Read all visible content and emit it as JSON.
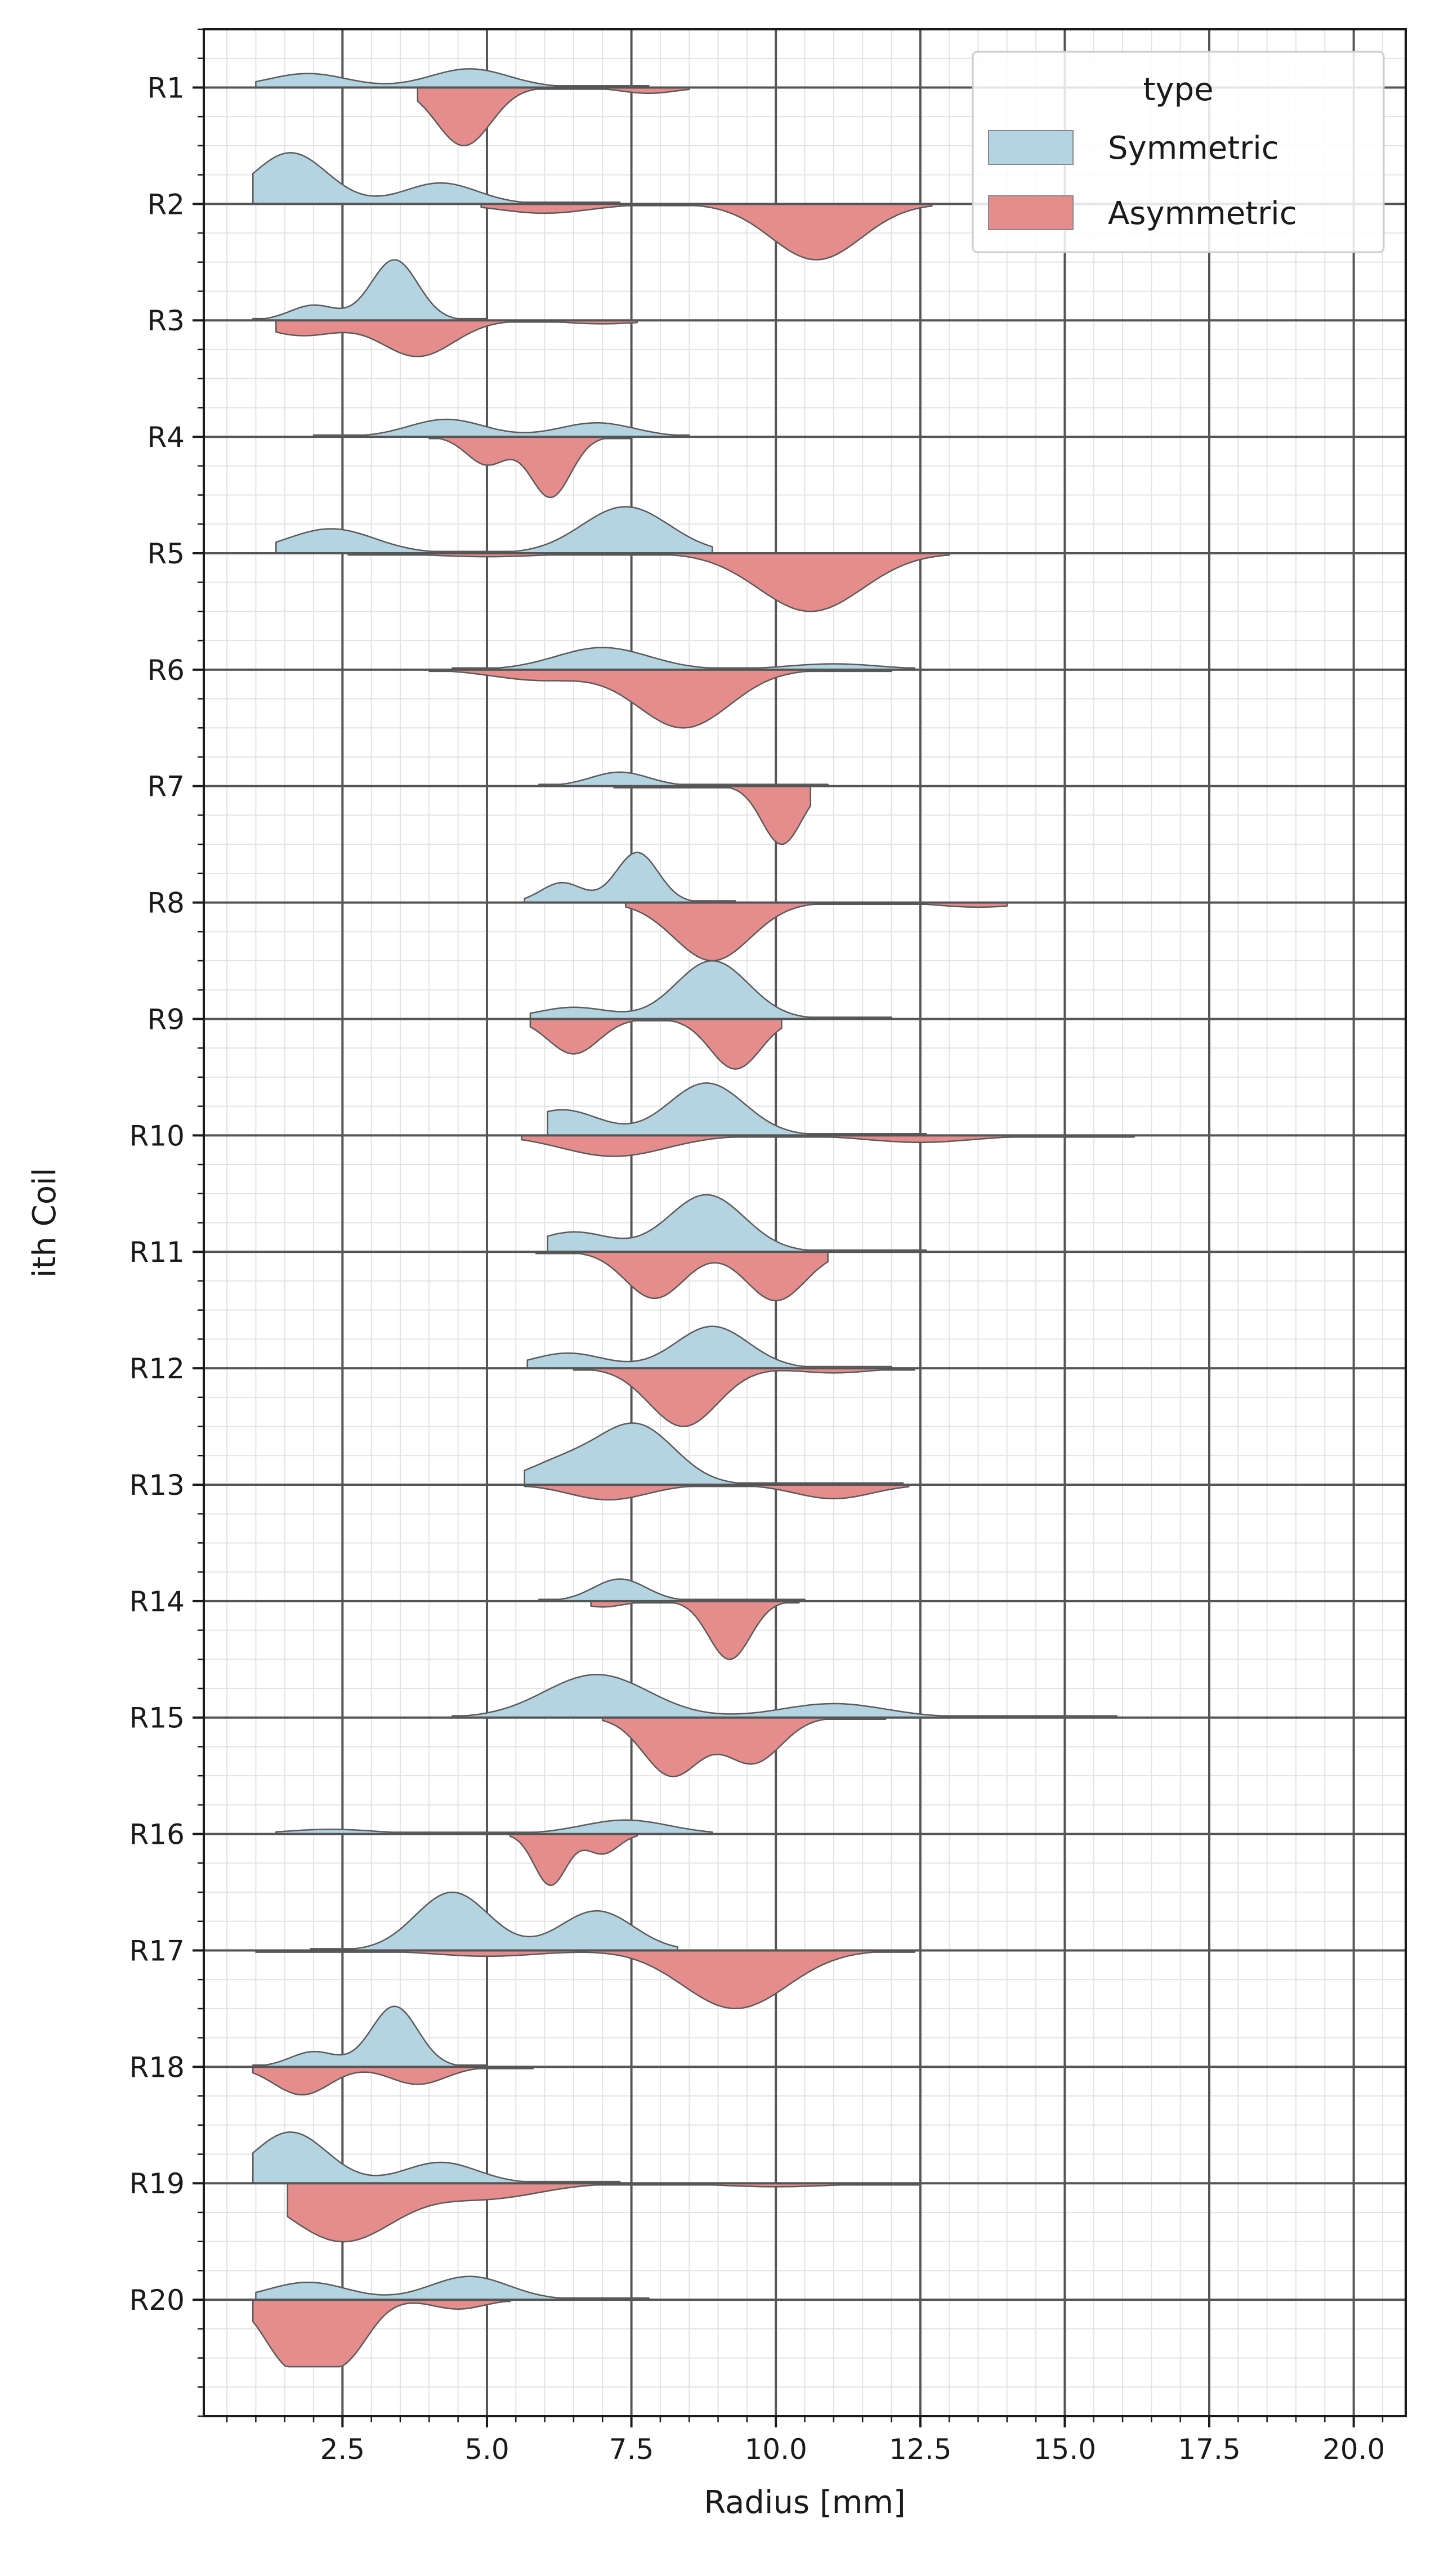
{
  "chart_data": {
    "type": "split-violin",
    "xlabel": "Radius [mm]",
    "ylabel": "ith Coil",
    "xlim": [
      0.1,
      20.9
    ],
    "xticks": [
      2.5,
      5.0,
      7.5,
      10.0,
      12.5,
      15.0,
      17.5,
      20.0
    ],
    "xtick_labels": [
      "2.5",
      "5.0",
      "7.5",
      "10.0",
      "12.5",
      "15.0",
      "17.5",
      "20.0"
    ],
    "categories": [
      "R1",
      "R2",
      "R3",
      "R4",
      "R5",
      "R6",
      "R7",
      "R8",
      "R9",
      "R10",
      "R11",
      "R12",
      "R13",
      "R14",
      "R15",
      "R16",
      "R17",
      "R18",
      "R19",
      "R20"
    ],
    "grid": "major and minor",
    "legend": {
      "title": "type",
      "placement": "top-right",
      "entries": [
        {
          "label": "Symmetric",
          "color": "#b3d4e0"
        },
        {
          "label": "Asymmetric",
          "color": "#e58c8c"
        }
      ]
    },
    "series": [
      {
        "name": "Symmetric",
        "side": "upper",
        "color": "#b3d4e0",
        "violins": [
          {
            "category": "R1",
            "range": [
              1.0,
              7.8
            ],
            "peaks": [
              [
                1.9,
                0.12
              ],
              [
                4.7,
                0.16
              ]
            ]
          },
          {
            "category": "R2",
            "range": [
              0.95,
              7.3
            ],
            "peaks": [
              [
                1.6,
                0.44
              ],
              [
                4.2,
                0.18
              ]
            ]
          },
          {
            "category": "R3",
            "range": [
              0.95,
              5.0
            ],
            "peaks": [
              [
                2.0,
                0.13
              ],
              [
                3.4,
                0.52
              ]
            ]
          },
          {
            "category": "R4",
            "range": [
              2.0,
              8.5
            ],
            "peaks": [
              [
                4.3,
                0.15
              ],
              [
                6.9,
                0.12
              ]
            ]
          },
          {
            "category": "R5",
            "range": [
              1.35,
              8.9
            ],
            "peaks": [
              [
                2.3,
                0.21
              ],
              [
                7.4,
                0.4
              ]
            ]
          },
          {
            "category": "R6",
            "range": [
              4.4,
              12.4
            ],
            "peaks": [
              [
                7.0,
                0.19
              ],
              [
                11.0,
                0.05
              ]
            ]
          },
          {
            "category": "R7",
            "range": [
              5.9,
              10.9
            ],
            "peaks": [
              [
                7.3,
                0.12
              ]
            ]
          },
          {
            "category": "R8",
            "range": [
              5.65,
              9.3
            ],
            "peaks": [
              [
                6.3,
                0.17
              ],
              [
                7.6,
                0.43
              ]
            ]
          },
          {
            "category": "R9",
            "range": [
              5.75,
              12.0
            ],
            "peaks": [
              [
                6.5,
                0.1
              ],
              [
                8.9,
                0.5
              ]
            ]
          },
          {
            "category": "R10",
            "range": [
              6.05,
              12.6
            ],
            "peaks": [
              [
                6.3,
                0.22
              ],
              [
                8.8,
                0.45
              ]
            ]
          },
          {
            "category": "R11",
            "range": [
              6.05,
              12.6
            ],
            "peaks": [
              [
                6.5,
                0.17
              ],
              [
                8.8,
                0.49
              ]
            ]
          },
          {
            "category": "R12",
            "range": [
              5.7,
              12.0
            ],
            "peaks": [
              [
                6.4,
                0.13
              ],
              [
                8.9,
                0.36
              ]
            ]
          },
          {
            "category": "R13",
            "range": [
              5.65,
              12.2
            ],
            "peaks": [
              [
                6.3,
                0.19
              ],
              [
                7.6,
                0.5
              ]
            ]
          },
          {
            "category": "R14",
            "range": [
              5.9,
              10.5
            ],
            "peaks": [
              [
                7.3,
                0.19
              ]
            ]
          },
          {
            "category": "R15",
            "range": [
              4.4,
              15.9
            ],
            "peaks": [
              [
                6.9,
                0.37
              ],
              [
                11.0,
                0.12
              ]
            ]
          },
          {
            "category": "R16",
            "range": [
              1.35,
              8.9
            ],
            "peaks": [
              [
                2.3,
                0.04
              ],
              [
                7.4,
                0.12
              ]
            ]
          },
          {
            "category": "R17",
            "range": [
              1.95,
              8.3
            ],
            "peaks": [
              [
                4.4,
                0.5
              ],
              [
                6.9,
                0.34
              ]
            ]
          },
          {
            "category": "R18",
            "range": [
              0.95,
              5.0
            ],
            "peaks": [
              [
                2.0,
                0.13
              ],
              [
                3.4,
                0.52
              ]
            ]
          },
          {
            "category": "R19",
            "range": [
              0.95,
              7.3
            ],
            "peaks": [
              [
                1.6,
                0.44
              ],
              [
                4.2,
                0.18
              ]
            ]
          },
          {
            "category": "R20",
            "range": [
              1.0,
              7.8
            ],
            "peaks": [
              [
                1.9,
                0.15
              ],
              [
                4.7,
                0.2
              ]
            ]
          }
        ]
      },
      {
        "name": "Asymmetric",
        "side": "lower",
        "color": "#e58c8c",
        "violins": [
          {
            "category": "R1",
            "range": [
              3.8,
              8.5
            ],
            "peaks": [
              [
                4.6,
                0.5
              ],
              [
                7.8,
                0.05
              ]
            ]
          },
          {
            "category": "R2",
            "range": [
              4.9,
              12.7
            ],
            "peaks": [
              [
                6.0,
                0.08
              ],
              [
                10.7,
                0.48
              ]
            ]
          },
          {
            "category": "R3",
            "range": [
              1.35,
              7.6
            ],
            "peaks": [
              [
                1.8,
                0.13
              ],
              [
                3.8,
                0.31
              ],
              [
                7.0,
                0.03
              ]
            ]
          },
          {
            "category": "R4",
            "range": [
              4.0,
              7.5
            ],
            "peaks": [
              [
                5.0,
                0.24
              ],
              [
                6.1,
                0.52
              ]
            ]
          },
          {
            "category": "R5",
            "range": [
              2.6,
              13.0
            ],
            "peaks": [
              [
                5.0,
                0.03
              ],
              [
                10.6,
                0.5
              ]
            ]
          },
          {
            "category": "R6",
            "range": [
              4.0,
              12.0
            ],
            "peaks": [
              [
                5.9,
                0.09
              ],
              [
                8.4,
                0.5
              ]
            ]
          },
          {
            "category": "R7",
            "range": [
              7.2,
              10.6
            ],
            "peaks": [
              [
                10.1,
                0.5
              ]
            ]
          },
          {
            "category": "R8",
            "range": [
              7.4,
              14.0
            ],
            "peaks": [
              [
                8.9,
                0.5
              ],
              [
                13.5,
                0.04
              ]
            ]
          },
          {
            "category": "R9",
            "range": [
              5.75,
              10.1
            ],
            "peaks": [
              [
                6.5,
                0.3
              ],
              [
                9.3,
                0.43
              ]
            ]
          },
          {
            "category": "R10",
            "range": [
              5.6,
              16.2
            ],
            "peaks": [
              [
                7.2,
                0.18
              ],
              [
                12.5,
                0.06
              ]
            ]
          },
          {
            "category": "R11",
            "range": [
              5.85,
              10.9
            ],
            "peaks": [
              [
                7.9,
                0.4
              ],
              [
                10.0,
                0.42
              ]
            ]
          },
          {
            "category": "R12",
            "range": [
              6.5,
              12.4
            ],
            "peaks": [
              [
                8.4,
                0.5
              ],
              [
                11.0,
                0.04
              ]
            ]
          },
          {
            "category": "R13",
            "range": [
              5.65,
              12.3
            ],
            "peaks": [
              [
                7.1,
                0.13
              ],
              [
                11.0,
                0.12
              ]
            ]
          },
          {
            "category": "R14",
            "range": [
              6.8,
              10.4
            ],
            "peaks": [
              [
                7.0,
                0.05
              ],
              [
                9.2,
                0.5
              ]
            ]
          },
          {
            "category": "R15",
            "range": [
              7.0,
              11.9
            ],
            "peaks": [
              [
                8.2,
                0.5
              ],
              [
                9.6,
                0.39
              ]
            ]
          },
          {
            "category": "R16",
            "range": [
              5.4,
              7.6
            ],
            "peaks": [
              [
                6.1,
                0.44
              ],
              [
                7.0,
                0.17
              ]
            ]
          },
          {
            "category": "R17",
            "range": [
              1.0,
              12.4
            ],
            "peaks": [
              [
                5.0,
                0.05
              ],
              [
                9.3,
                0.5
              ]
            ]
          },
          {
            "category": "R18",
            "range": [
              0.95,
              5.8
            ],
            "peaks": [
              [
                1.8,
                0.24
              ],
              [
                3.8,
                0.15
              ]
            ]
          },
          {
            "category": "R19",
            "range": [
              1.55,
              12.5
            ],
            "peaks": [
              [
                2.5,
                0.5
              ],
              [
                5.0,
                0.13
              ],
              [
                10.0,
                0.03
              ]
            ]
          },
          {
            "category": "R20",
            "range": [
              0.95,
              5.4
            ],
            "peaks": [
              [
                1.6,
                0.54
              ],
              [
                2.5,
                0.5
              ],
              [
                4.5,
                0.08
              ]
            ]
          }
        ]
      }
    ]
  }
}
